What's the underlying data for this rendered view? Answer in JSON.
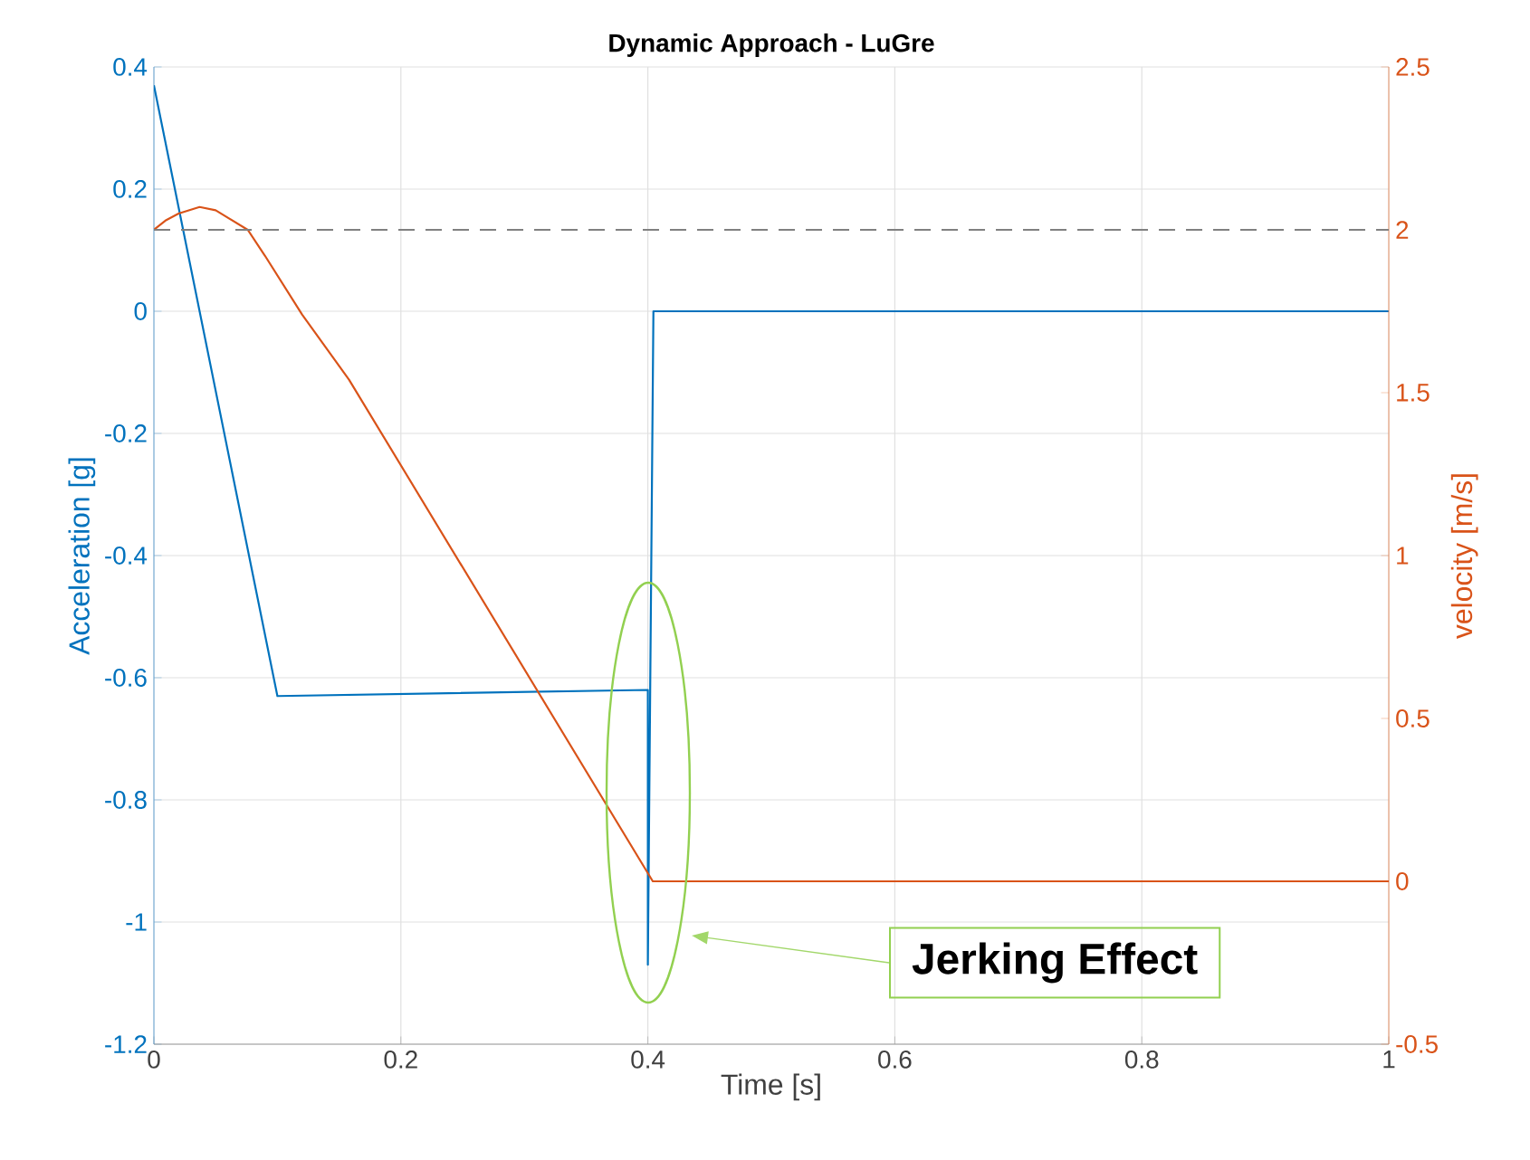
{
  "chart_data": {
    "type": "line",
    "title": "Dynamic Approach - LuGre",
    "xlabel": "Time [s]",
    "ylabel": "Acceleration [g]",
    "y2label": "velocity [m/s]",
    "xlim": [
      0,
      1
    ],
    "xticks": [
      0,
      0.2,
      0.4,
      0.6,
      0.8,
      1
    ],
    "ylim": [
      -1.2,
      0.4
    ],
    "yticks": [
      -1.2,
      -1,
      -0.8,
      -0.6,
      -0.4,
      -0.2,
      0,
      0.2,
      0.4
    ],
    "y2lim": [
      -0.5,
      2.5
    ],
    "y2ticks": [
      -0.5,
      0,
      0.5,
      1,
      1.5,
      2,
      2.5
    ],
    "grid": true,
    "series": [
      {
        "color": "#0072bd",
        "x": [
          0,
          0.1,
          0.4,
          0.4,
          0.4045,
          1
        ],
        "values": [
          0.37,
          -0.63,
          -0.62,
          -1.07,
          0,
          0
        ]
      },
      {
        "color": "#d95319",
        "axis": "y2",
        "x": [
          0,
          0.01,
          0.02,
          0.037,
          0.05,
          0.076,
          0.09,
          0.12,
          0.158,
          0.404,
          1
        ],
        "values": [
          2.0,
          2.03,
          2.05,
          2.07,
          2.06,
          2.0,
          1.92,
          1.74,
          1.54,
          0,
          0
        ]
      }
    ],
    "ref_lines": [
      {
        "axis": "y2",
        "value": 2,
        "color": "#808080",
        "line_style": "dashed"
      }
    ],
    "annotations": [
      "Jerking Effect"
    ]
  }
}
